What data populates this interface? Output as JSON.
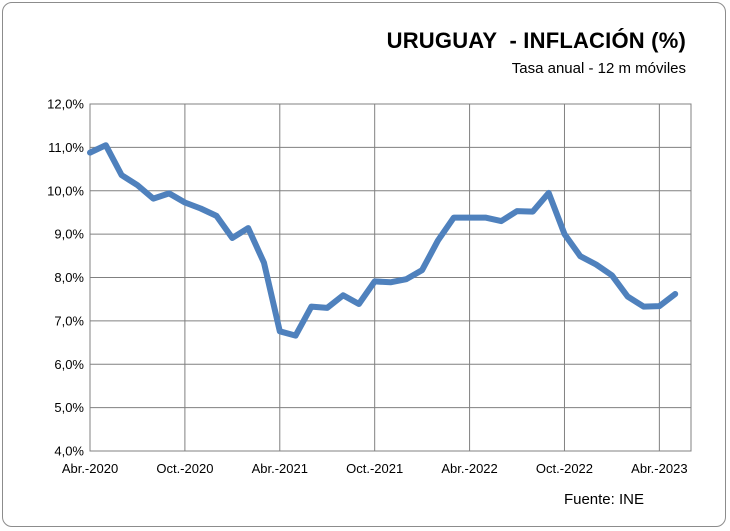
{
  "chart_data": {
    "type": "line",
    "title": "URUGUAY  - INFLACIÓN (%)",
    "subtitle": "Tasa anual - 12 m móviles",
    "source": "Fuente: INE",
    "ylim": [
      4.0,
      12.0
    ],
    "y_ticks": [
      "12,0%",
      "11,0%",
      "10,0%",
      "9,0%",
      "8,0%",
      "7,0%",
      "6,0%",
      "5,0%",
      "4,0%"
    ],
    "y_tick_values": [
      12,
      11,
      10,
      9,
      8,
      7,
      6,
      5,
      4
    ],
    "x_ticks": [
      "Abr.-2020",
      "Oct.-2020",
      "Abr.-2021",
      "Oct.-2021",
      "Abr.-2022",
      "Oct.-2022",
      "Abr.-2023"
    ],
    "x_tick_months": [
      0,
      6,
      12,
      18,
      24,
      30,
      36
    ],
    "x_months": [
      0,
      1,
      2,
      3,
      4,
      5,
      6,
      7,
      8,
      9,
      10,
      11,
      12,
      13,
      14,
      15,
      16,
      17,
      18,
      19,
      20,
      21,
      22,
      23,
      24,
      25,
      26,
      27,
      28,
      29,
      30,
      31,
      32,
      33,
      34,
      35,
      36,
      37
    ],
    "series": [
      {
        "values": [
          10.88,
          11.05,
          10.36,
          10.13,
          9.82,
          9.94,
          9.73,
          9.59,
          9.42,
          8.91,
          9.14,
          8.34,
          6.76,
          6.66,
          7.33,
          7.3,
          7.59,
          7.39,
          7.91,
          7.89,
          7.96,
          8.17,
          8.85,
          9.38,
          9.38,
          9.38,
          9.3,
          9.53,
          9.52,
          9.95,
          9.0,
          8.49,
          8.3,
          8.05,
          7.56,
          7.33,
          7.34,
          7.62
        ],
        "color": "#4f81bd"
      }
    ],
    "grid": true
  }
}
